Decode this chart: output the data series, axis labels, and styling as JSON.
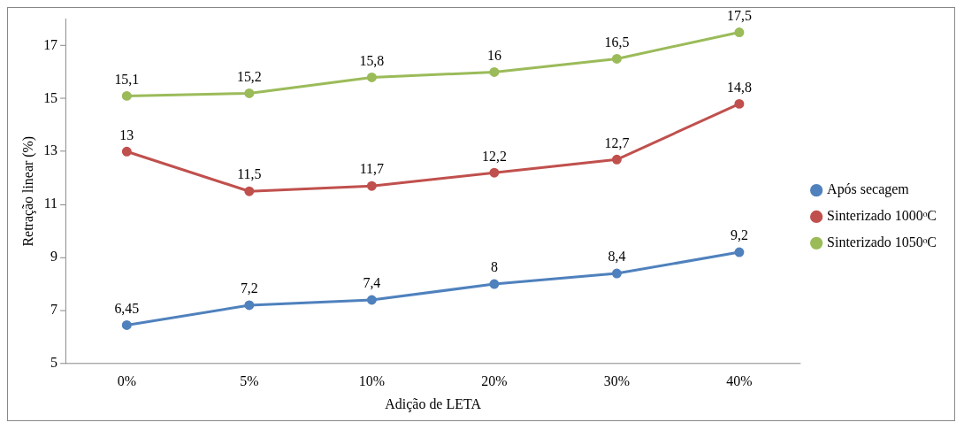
{
  "chart_data": {
    "type": "line",
    "xlabel": "Adição de LETA",
    "ylabel": "Retração linear (%)",
    "categories": [
      "0%",
      "5%",
      "10%",
      "20%",
      "30%",
      "40%"
    ],
    "series": [
      {
        "name": "Após secagem",
        "color": "#4f81bd",
        "values": [
          6.45,
          7.2,
          7.4,
          8,
          8.4,
          9.2
        ],
        "value_labels": [
          "6,45",
          "7,2",
          "7,4",
          "8",
          "8,4",
          "9,2"
        ]
      },
      {
        "name": "Sinterizado 1000ᵒC",
        "color": "#c0504d",
        "values": [
          13,
          11.5,
          11.7,
          12.2,
          12.7,
          14.8
        ],
        "value_labels": [
          "13",
          "11,5",
          "11,7",
          "12,2",
          "12,7",
          "14,8"
        ]
      },
      {
        "name": "Sinterizado 1050ᵒC",
        "color": "#9bbb59",
        "values": [
          15.1,
          15.2,
          15.8,
          16,
          16.5,
          17.5
        ],
        "value_labels": [
          "15,1",
          "15,2",
          "15,8",
          "16",
          "16,5",
          "17,5"
        ]
      }
    ],
    "ylim": [
      5,
      18
    ],
    "yticks": [
      5,
      7,
      9,
      11,
      13,
      15,
      17
    ],
    "grid": false,
    "legend": "right",
    "marker": "circle",
    "line_style": "solid"
  }
}
